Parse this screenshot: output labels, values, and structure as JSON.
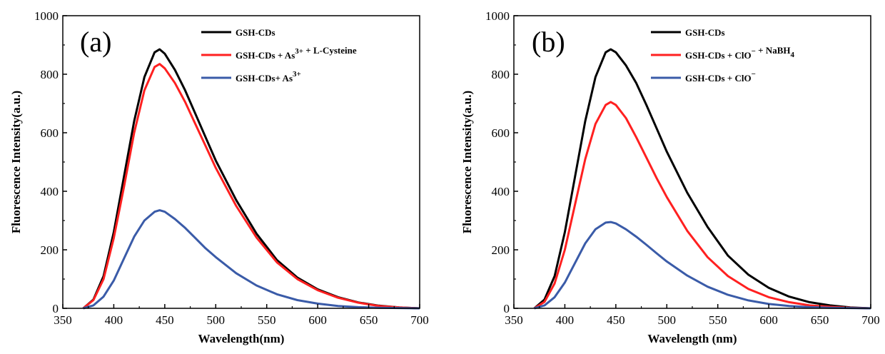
{
  "chart_data": [
    {
      "type": "line",
      "panel_label": "(a)",
      "xlabel": "Wavelength(nm)",
      "ylabel": "Fluorescence Intensity(a.u.)",
      "xlim": [
        350,
        700
      ],
      "ylim": [
        0,
        1000
      ],
      "x_ticks": [
        350,
        400,
        450,
        500,
        550,
        600,
        650,
        700
      ],
      "y_ticks": [
        0,
        200,
        400,
        600,
        800,
        1000
      ],
      "legend_position": "top-right",
      "x": [
        370,
        380,
        390,
        400,
        410,
        420,
        430,
        440,
        445,
        450,
        460,
        470,
        480,
        490,
        500,
        520,
        540,
        560,
        580,
        600,
        620,
        640,
        660,
        680,
        700
      ],
      "series": [
        {
          "name": "GSH-CDs",
          "legend_parts": [
            [
              "GSH-CDs",
              ""
            ]
          ],
          "color": "#000000",
          "values": [
            0,
            30,
            110,
            260,
            450,
            640,
            790,
            875,
            885,
            870,
            815,
            745,
            665,
            585,
            505,
            370,
            255,
            165,
            105,
            65,
            38,
            20,
            9,
            3,
            0
          ]
        },
        {
          "name": "GSH-CDs + As3+ + L-Cysteine",
          "legend_parts": [
            [
              "GSH-CDs + As",
              "3+"
            ],
            [
              " + L-Cysteine",
              ""
            ]
          ],
          "color": "#ff2020",
          "values": [
            0,
            28,
            100,
            240,
            415,
            600,
            745,
            825,
            835,
            820,
            770,
            705,
            630,
            555,
            480,
            350,
            242,
            157,
            100,
            62,
            36,
            19,
            8,
            3,
            0
          ]
        },
        {
          "name": "GSH-CDs+ As3+",
          "legend_parts": [
            [
              "GSH-CDs+ As",
              "3+"
            ]
          ],
          "color": "#3a5ba8",
          "values": [
            0,
            10,
            40,
            95,
            170,
            245,
            300,
            330,
            335,
            330,
            305,
            275,
            240,
            205,
            175,
            120,
            78,
            48,
            28,
            16,
            8,
            4,
            2,
            1,
            0
          ]
        }
      ]
    },
    {
      "type": "line",
      "panel_label": "(b)",
      "xlabel": "Wavelength (nm)",
      "ylabel": "Fluorescence Intensity(a.u.)",
      "xlim": [
        350,
        700
      ],
      "ylim": [
        0,
        1000
      ],
      "x_ticks": [
        350,
        400,
        450,
        500,
        550,
        600,
        650,
        700
      ],
      "y_ticks": [
        0,
        200,
        400,
        600,
        800,
        1000
      ],
      "legend_position": "top-right",
      "x": [
        370,
        380,
        390,
        400,
        410,
        420,
        430,
        440,
        445,
        450,
        460,
        470,
        480,
        490,
        500,
        520,
        540,
        560,
        580,
        600,
        620,
        640,
        660,
        680,
        700
      ],
      "series": [
        {
          "name": "GSH-CDs",
          "legend_parts": [
            [
              "GSH-CDs",
              ""
            ]
          ],
          "color": "#000000",
          "values": [
            0,
            30,
            110,
            260,
            450,
            640,
            790,
            875,
            885,
            875,
            830,
            770,
            695,
            615,
            535,
            395,
            278,
            180,
            115,
            70,
            40,
            21,
            10,
            3,
            0
          ]
        },
        {
          "name": "GSH-CDs + ClO- + NaBH4",
          "legend_parts": [
            [
              "GSH-CDs + ClO",
              "−"
            ],
            [
              " + NaBH",
              "4",
              "sub"
            ]
          ],
          "color": "#ff2020",
          "values": [
            0,
            22,
            85,
            200,
            355,
            510,
            630,
            695,
            705,
            695,
            650,
            585,
            515,
            445,
            380,
            265,
            175,
            110,
            66,
            38,
            21,
            10,
            5,
            2,
            0
          ]
        },
        {
          "name": "GSH-CDs + ClO-",
          "legend_parts": [
            [
              "GSH-CDs + ClO",
              "−"
            ]
          ],
          "color": "#3a5ba8",
          "values": [
            0,
            10,
            38,
            88,
            155,
            222,
            270,
            293,
            295,
            290,
            270,
            245,
            217,
            188,
            160,
            112,
            74,
            46,
            27,
            15,
            8,
            4,
            2,
            1,
            0
          ]
        }
      ]
    }
  ]
}
